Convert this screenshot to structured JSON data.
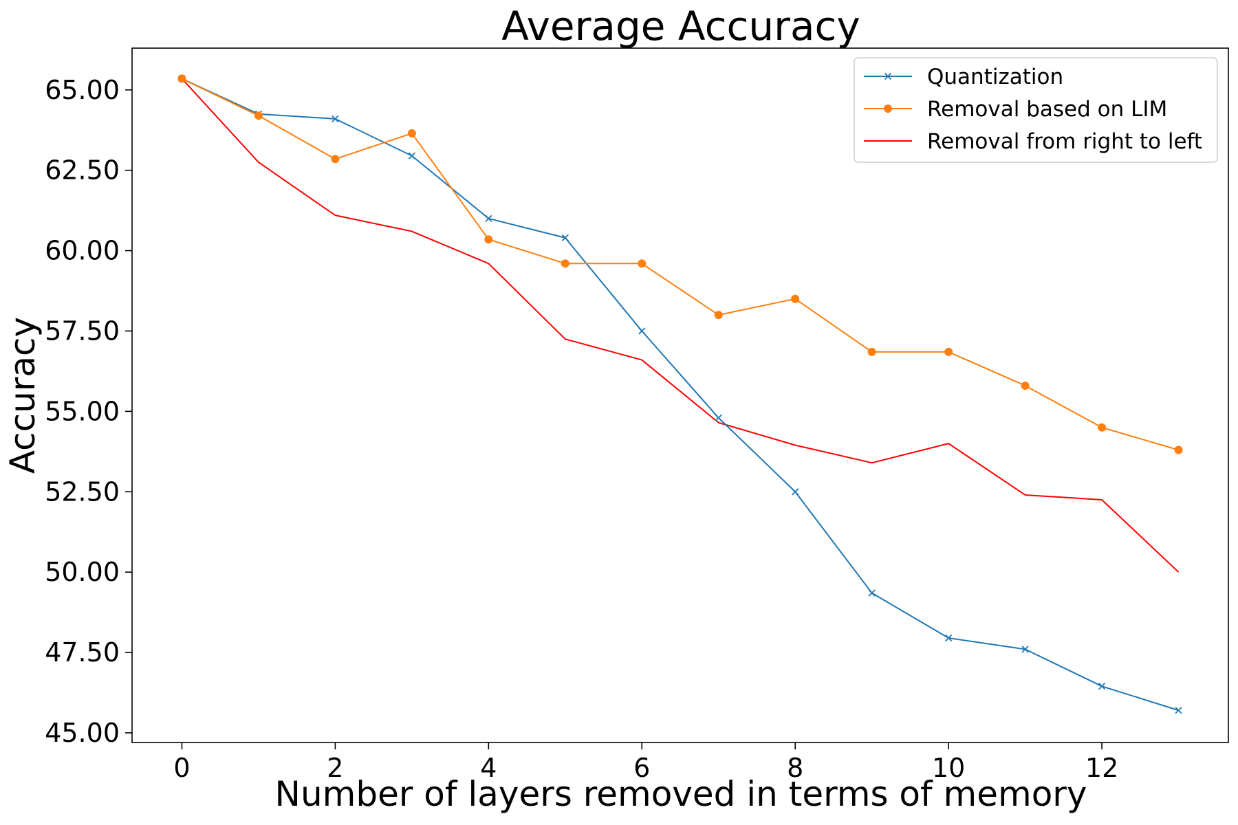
{
  "chart_data": {
    "type": "line",
    "title": "Average Accuracy",
    "xlabel": "Number of layers removed in terms of memory",
    "ylabel": "Accuracy",
    "xlim": [
      -0.65,
      13.65
    ],
    "ylim": [
      44.7,
      66.3
    ],
    "xticks": [
      0,
      2,
      4,
      6,
      8,
      10,
      12
    ],
    "xtick_labels": [
      "0",
      "2",
      "4",
      "6",
      "8",
      "10",
      "12"
    ],
    "yticks": [
      45,
      47.5,
      50,
      52.5,
      55,
      57.5,
      60,
      62.5,
      65
    ],
    "ytick_labels": [
      "45.00",
      "47.50",
      "50.00",
      "52.50",
      "55.00",
      "57.50",
      "60.00",
      "62.50",
      "65.00"
    ],
    "grid": false,
    "legend_position": "top-right",
    "x": [
      0,
      1,
      2,
      3,
      4,
      5,
      6,
      7,
      8,
      9,
      10,
      11,
      12,
      13
    ],
    "series": [
      {
        "name": "Quantization",
        "color": "#1f77b4",
        "marker": "x",
        "values": [
          65.35,
          64.25,
          64.1,
          62.95,
          61.0,
          60.4,
          57.5,
          54.8,
          52.5,
          49.35,
          47.95,
          47.6,
          46.45,
          45.7
        ]
      },
      {
        "name": "Removal based on LIM",
        "color": "#ff7f0e",
        "marker": "circle",
        "values": [
          65.35,
          64.2,
          62.85,
          63.65,
          60.35,
          59.6,
          59.6,
          58.0,
          58.5,
          56.85,
          56.85,
          55.8,
          54.5,
          53.8
        ]
      },
      {
        "name": "Removal from right to left",
        "color": "#ff0000",
        "marker": "none",
        "values": [
          65.35,
          62.75,
          61.1,
          60.6,
          59.6,
          57.25,
          56.6,
          54.65,
          53.95,
          53.4,
          54.0,
          52.4,
          52.25,
          50.0
        ]
      }
    ]
  }
}
